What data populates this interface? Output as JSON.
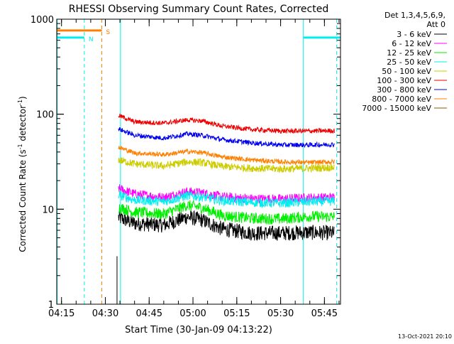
{
  "title": "RHESSI Observing Summary Count Rates, Corrected",
  "ylabel": "Corrected Count Rate (s",
  "ylabel_sup1": "-1",
  "ylabel_mid": " detector",
  "ylabel_sup2": "-1",
  "ylabel_end": ")",
  "xlabel": "Start Time (30-Jan-09 04:13:22)",
  "footer": "13-Oct-2021 20:10",
  "legend": {
    "header1": "Det 1,3,4,5,6,9,",
    "header2": "Att 0",
    "entries": [
      {
        "label": "3 - 6 keV",
        "color": "#000000"
      },
      {
        "label": "6 - 12 keV",
        "color": "#ff00ff"
      },
      {
        "label": "12 - 25 keV",
        "color": "#00ee00"
      },
      {
        "label": "25 - 50 keV",
        "color": "#00eeee"
      },
      {
        "label": "50 - 100 keV",
        "color": "#cccc00"
      },
      {
        "label": "100 - 300 keV",
        "color": "#ee0000"
      },
      {
        "label": "300 - 800 keV",
        "color": "#0000ee"
      },
      {
        "label": "800 - 7000 keV",
        "color": "#ff8000"
      },
      {
        "label": "7000 - 15000 keV",
        "color": "#806000"
      }
    ]
  },
  "chart_data": {
    "type": "line",
    "title": "RHESSI Observing Summary Count Rates, Corrected",
    "xlabel": "Start Time (30-Jan-09 04:13:22)",
    "ylabel": "Corrected Count Rate (s^-1 detector^-1)",
    "yscale": "log",
    "ylim": [
      1,
      1000
    ],
    "yticks": [
      1,
      10,
      100,
      1000
    ],
    "ytick_labels": [
      "1",
      "10",
      "100",
      "1000"
    ],
    "xlim_minutes": [
      253.37,
      350.5
    ],
    "xticks_minutes": [
      255,
      270,
      285,
      300,
      315,
      330,
      345
    ],
    "xtick_labels": [
      "04:15",
      "04:30",
      "04:45",
      "05:00",
      "05:15",
      "05:30",
      "05:45"
    ],
    "data_start_minute": 274.0,
    "data_end_minute": 348.5,
    "gap_end_minute": 353.0,
    "series": [
      {
        "name": "3 - 6 keV",
        "color": "#000000",
        "noise": 0.08,
        "points": [
          [
            274.5,
            8.2
          ],
          [
            280,
            7.1
          ],
          [
            290,
            6.8
          ],
          [
            298,
            8.3
          ],
          [
            303,
            7.7
          ],
          [
            310,
            6.2
          ],
          [
            320,
            5.6
          ],
          [
            330,
            5.6
          ],
          [
            340,
            5.7
          ],
          [
            348,
            5.6
          ]
        ]
      },
      {
        "name": "6 - 12 keV",
        "color": "#ff00ff",
        "noise": 0.05,
        "points": [
          [
            274.5,
            16.5
          ],
          [
            280,
            14.5
          ],
          [
            290,
            13.3
          ],
          [
            298,
            15.3
          ],
          [
            303,
            14.9
          ],
          [
            310,
            13.5
          ],
          [
            320,
            12.9
          ],
          [
            330,
            12.8
          ],
          [
            340,
            13.2
          ],
          [
            348,
            13.3
          ]
        ]
      },
      {
        "name": "12 - 25 keV",
        "color": "#00ee00",
        "noise": 0.06,
        "points": [
          [
            274.5,
            10.5
          ],
          [
            280,
            9.3
          ],
          [
            290,
            8.9
          ],
          [
            298,
            11.0
          ],
          [
            303,
            10.4
          ],
          [
            310,
            8.6
          ],
          [
            320,
            8.0
          ],
          [
            330,
            7.9
          ],
          [
            340,
            8.4
          ],
          [
            348,
            8.3
          ]
        ]
      },
      {
        "name": "25 - 50 keV",
        "color": "#00eeee",
        "noise": 0.05,
        "points": [
          [
            274.5,
            14.2
          ],
          [
            280,
            12.5
          ],
          [
            290,
            12.0
          ],
          [
            298,
            13.9
          ],
          [
            303,
            13.5
          ],
          [
            310,
            12.3
          ],
          [
            320,
            11.8
          ],
          [
            330,
            11.6
          ],
          [
            340,
            12.0
          ],
          [
            348,
            12.1
          ]
        ]
      },
      {
        "name": "50 - 100 keV",
        "color": "#cccc00",
        "noise": 0.04,
        "points": [
          [
            274.5,
            33.0
          ],
          [
            280,
            30.0
          ],
          [
            290,
            28.5
          ],
          [
            298,
            31.5
          ],
          [
            303,
            31.0
          ],
          [
            310,
            28.2
          ],
          [
            320,
            27.0
          ],
          [
            330,
            26.5
          ],
          [
            340,
            27.0
          ],
          [
            348,
            27.5
          ]
        ]
      },
      {
        "name": "100 - 300 keV",
        "color": "#ee0000",
        "noise": 0.025,
        "points": [
          [
            274.5,
            97.0
          ],
          [
            280,
            83.0
          ],
          [
            290,
            80.5
          ],
          [
            298,
            87.0
          ],
          [
            303,
            85.0
          ],
          [
            310,
            75.0
          ],
          [
            320,
            69.0
          ],
          [
            330,
            66.5
          ],
          [
            340,
            66.5
          ],
          [
            348,
            67.0
          ]
        ]
      },
      {
        "name": "300 - 800 keV",
        "color": "#0000ee",
        "noise": 0.025,
        "points": [
          [
            274.5,
            70.0
          ],
          [
            280,
            60.0
          ],
          [
            290,
            56.0
          ],
          [
            298,
            62.0
          ],
          [
            303,
            60.0
          ],
          [
            310,
            54.0
          ],
          [
            320,
            50.0
          ],
          [
            330,
            47.5
          ],
          [
            340,
            47.5
          ],
          [
            348,
            48.0
          ]
        ]
      },
      {
        "name": "800 - 7000 keV",
        "color": "#ff8000",
        "noise": 0.025,
        "points": [
          [
            274.5,
            45.0
          ],
          [
            280,
            39.0
          ],
          [
            290,
            37.5
          ],
          [
            298,
            40.5
          ],
          [
            303,
            39.5
          ],
          [
            310,
            35.5
          ],
          [
            320,
            33.0
          ],
          [
            330,
            31.5
          ],
          [
            340,
            31.0
          ],
          [
            348,
            31.5
          ]
        ]
      },
      {
        "name": "7000 - 15000 keV",
        "color": "#806000",
        "noise": 0.0,
        "points": []
      }
    ],
    "markers": [
      {
        "type": "solid",
        "color": "#00eeee",
        "minute": 253.5
      },
      {
        "type": "dashed",
        "color": "#00eeee",
        "minute": 262.8
      },
      {
        "type": "dashed",
        "color": "#ff8000",
        "minute": 268.8
      },
      {
        "type": "solid",
        "color": "#00eeee",
        "minute": 275.2
      },
      {
        "type": "solid",
        "color": "#00eeee",
        "minute": 337.8
      },
      {
        "type": "dashed",
        "color": "#00eeee",
        "minute": 349.2
      }
    ],
    "flag_bars": [
      {
        "label": "N",
        "color": "#00eeee",
        "start_minute": 253.37,
        "end_minute": 262.8,
        "value": 640
      },
      {
        "label": "S",
        "color": "#ff8000",
        "start_minute": 253.37,
        "end_minute": 268.8,
        "value": 760
      },
      {
        "label": "",
        "color": "#00eeee",
        "start_minute": 337.8,
        "end_minute": 350.5,
        "value": 640
      }
    ]
  }
}
